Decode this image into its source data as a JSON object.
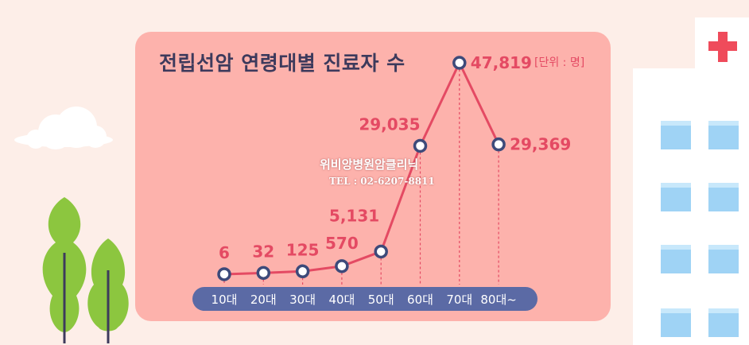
{
  "chart_data": {
    "type": "line",
    "title": "전립선암 연령대별 진료자 수",
    "unit_label": "[단위 : 명]",
    "categories": [
      "10대",
      "20대",
      "30대",
      "40대",
      "50대",
      "60대",
      "70대",
      "80대~"
    ],
    "values": [
      6,
      32,
      125,
      570,
      5131,
      29035,
      47819,
      29369
    ],
    "value_labels": [
      "6",
      "32",
      "125",
      "570",
      "5,131",
      "29,035",
      "47,819",
      "29,369"
    ],
    "line_color": "#e44a63",
    "marker_color": "#3d4a7a",
    "axis_bar_color": "#5b6aa5"
  },
  "watermark": {
    "line1": "위비앙병원암클리닉",
    "line2": "TEL : 02-6207-8811"
  },
  "colors": {
    "background": "#fdeee8",
    "panel": "#fdb2ac",
    "tree": "#8cc63f",
    "cloud": "#ffffff",
    "hospital_cross": "#ef4b5b",
    "window": "#9fd3f5"
  },
  "icons": [
    "cloud-icon",
    "tree-icon",
    "hospital-building-icon",
    "red-cross-icon"
  ]
}
